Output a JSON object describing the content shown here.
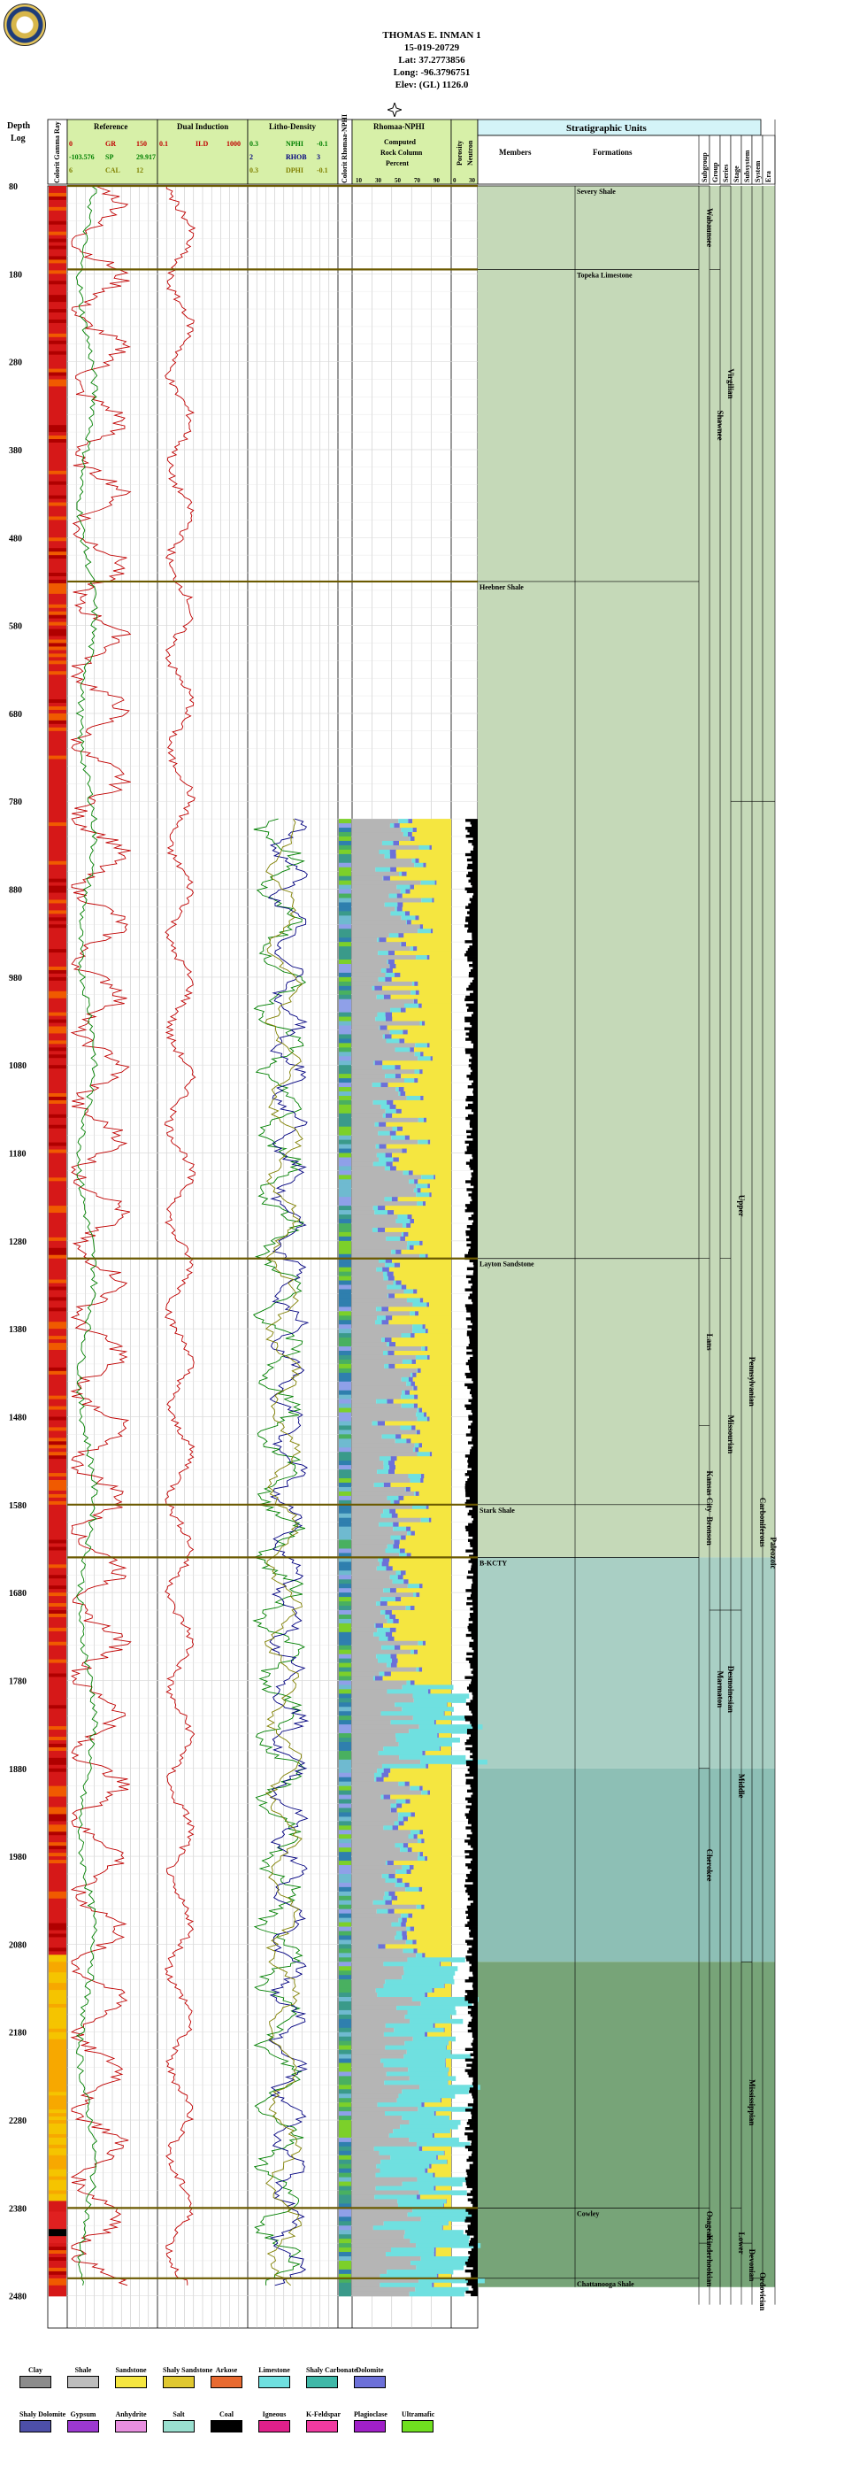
{
  "well": {
    "name": "THOMAS E. INMAN 1",
    "api": "15-019-20729",
    "lat": "Lat: 37.2773856",
    "long": "Long: -96.3796751",
    "elev": "Elev: (GL) 1126.0"
  },
  "headers": {
    "depth": "Depth",
    "log": "Log",
    "colorit_gamma": "Colorit Gamma Ray",
    "reference": "Reference",
    "dual_induction": "Dual Induction",
    "litho_density": "Litho-Density",
    "colorit_rhomaa": "Colorit Rhomaa-NPHI",
    "rhomaa_nphi": "Rhomaa-NPHI",
    "computed_rock": "Computed",
    "rock_column": "Rock Column",
    "percent": "Percent",
    "porosity": "Porosity",
    "neutron": "Neutron",
    "strat_units": "Stratigraphic Units",
    "members": "Members",
    "formations": "Formations",
    "subgroup": "Subgroup",
    "group": "Group",
    "series": "Series",
    "stage": "Stage",
    "subsystem": "Subsystem",
    "system": "System",
    "era": "Era"
  },
  "curve_scales": {
    "gr": {
      "min": "0",
      "label": "GR",
      "max": "150"
    },
    "sp": {
      "min": "-103.576",
      "label": "SP",
      "max": "29.917"
    },
    "cal": {
      "min": "6",
      "label": "CAL",
      "max": "12"
    },
    "ild": {
      "min": "0.1",
      "label": "ILD",
      "max": "1000"
    },
    "nphi": {
      "min": "0.3",
      "label": "NPHI",
      "max": "-0.1"
    },
    "rhob": {
      "min": "2",
      "label": "RHOB",
      "max": "3"
    },
    "dphi": {
      "min": "0.3",
      "label": "DPHI",
      "max": "-0.1"
    },
    "percent_ticks": [
      "10",
      "30",
      "50",
      "70",
      "90"
    ],
    "porosity_ticks": [
      "0",
      "30"
    ]
  },
  "depth_ticks": [
    "80",
    "180",
    "280",
    "380",
    "480",
    "580",
    "680",
    "780",
    "880",
    "980",
    "1080",
    "1180",
    "1280",
    "1380",
    "1480",
    "1580",
    "1680",
    "1780",
    "1880",
    "1980",
    "2080",
    "2180",
    "2280",
    "2380",
    "2480"
  ],
  "tops": [
    {
      "name": "Severy Shale",
      "depth": 80,
      "col": "formation"
    },
    {
      "name": "Topeka Limestone",
      "depth": 175,
      "col": "formation"
    },
    {
      "name": "Heebner Shale",
      "depth": 530,
      "col": "member"
    },
    {
      "name": "Layton Sandstone",
      "depth": 1300,
      "col": "member"
    },
    {
      "name": "Stark Shale",
      "depth": 1580,
      "col": "member"
    },
    {
      "name": "B-KCTY",
      "depth": 1640,
      "col": "member"
    },
    {
      "name": "Cowley",
      "depth": 2380,
      "col": "formation"
    },
    {
      "name": "Chattanooga Shale",
      "depth": 2460,
      "col": "formation"
    }
  ],
  "strat_columns": {
    "subgroup": [
      {
        "name": "Wabaunsee",
        "from": 80,
        "to": 175
      },
      {
        "name": "Lans",
        "from": 1300,
        "to": 1490
      },
      {
        "name": "Kansas City",
        "from": 1490,
        "to": 1640
      },
      {
        "name": "Bronson",
        "from": 1580,
        "to": 1640
      },
      {
        "name": "Cherokee",
        "from": 1880,
        "to": 2100
      },
      {
        "name": "Osagean",
        "from": 2380,
        "to": 2420
      },
      {
        "name": "Kinderhookian",
        "from": 2420,
        "to": 2460
      }
    ],
    "group": [
      {
        "name": "Shawnee",
        "from": 175,
        "to": 530
      },
      {
        "name": "Marmaton",
        "from": 1700,
        "to": 1880
      }
    ],
    "series": [
      {
        "name": "Virgilian",
        "from": 80,
        "to": 530
      },
      {
        "name": "Missourian",
        "from": 1300,
        "to": 1700
      },
      {
        "name": "Desmoinesian",
        "from": 1700,
        "to": 1880
      }
    ],
    "stage": [
      {
        "name": "Upper",
        "from": 780,
        "to": 1700
      },
      {
        "name": "Middle",
        "from": 1700,
        "to": 2100
      },
      {
        "name": "Lower",
        "from": 2380,
        "to": 2460
      }
    ],
    "subsystem": [
      {
        "name": "Pennsylvanian",
        "from": 780,
        "to": 2100
      },
      {
        "name": "Mississippian",
        "from": 2100,
        "to": 2420
      },
      {
        "name": "Devonian",
        "from": 2420,
        "to": 2470
      }
    ],
    "system": [
      {
        "name": "Carboniferous",
        "from": 780,
        "to": 2420
      },
      {
        "name": "Ordovician",
        "from": 2460,
        "to": 2490
      }
    ],
    "era": [
      {
        "name": "Paleozoic",
        "from": 780,
        "to": 2490
      }
    ]
  },
  "legend": [
    {
      "label": "Clay",
      "color": "#8c8c8c"
    },
    {
      "label": "Shale",
      "color": "#bdbdbd"
    },
    {
      "label": "Sandstone",
      "color": "#f5e640"
    },
    {
      "label": "Shaly Sandstone",
      "color": "#e0c830"
    },
    {
      "label": "Arkose",
      "color": "#e86a30"
    },
    {
      "label": "Limestone",
      "color": "#6fe0e0"
    },
    {
      "label": "Shaly Carbonate",
      "color": "#3fb8a8"
    },
    {
      "label": "Dolomite",
      "color": "#6c70d8"
    },
    {
      "label": "Shaly Dolomite",
      "color": "#4d4fa8"
    },
    {
      "label": "Gypsum",
      "color": "#9c38d0"
    },
    {
      "label": "Anhydrite",
      "color": "#e88fe0"
    },
    {
      "label": "Salt",
      "color": "#9ae0d0"
    },
    {
      "label": "Coal",
      "color": "#000000"
    },
    {
      "label": "Igneous",
      "color": "#e0208a"
    },
    {
      "label": "K-Feldspar",
      "color": "#f03aa0"
    },
    {
      "label": "Plagioclase",
      "color": "#a020c8"
    },
    {
      "label": "Ultramafic",
      "color": "#70e020"
    }
  ]
}
